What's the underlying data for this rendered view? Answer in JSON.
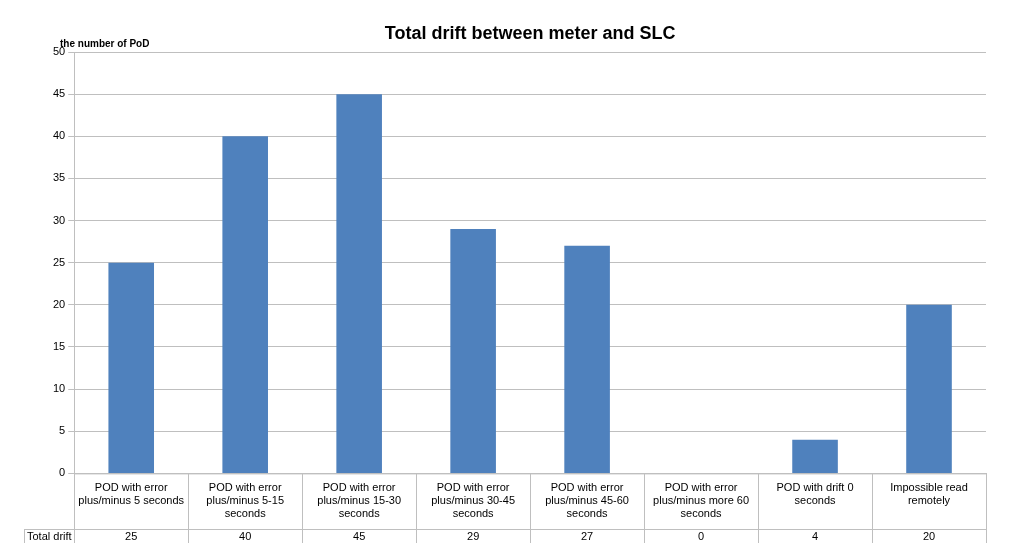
{
  "chart_data": {
    "type": "bar",
    "title": "Total drift between meter and SLC",
    "ylabel": "the number of PoD",
    "categories": [
      "POD with error plus/minus 5 seconds",
      "POD with error plus/minus 5-15 seconds",
      "POD with error plus/minus 15-30 seconds",
      "POD with error plus/minus 30-45 seconds",
      "POD with error plus/minus 45-60 seconds",
      "POD with error plus/minus more 60 seconds",
      "POD with drift 0 seconds",
      "Impossible read remotely"
    ],
    "series": [
      {
        "name": "Total drift",
        "color": "#4f81bd",
        "values": [
          25,
          40,
          45,
          29,
          27,
          0,
          4,
          20
        ]
      }
    ],
    "ylim": [
      0,
      50
    ],
    "yticks": [
      0,
      5,
      10,
      15,
      20,
      25,
      30,
      35,
      40,
      45,
      50
    ],
    "grid": "y",
    "legend": false,
    "data_labels": true
  }
}
